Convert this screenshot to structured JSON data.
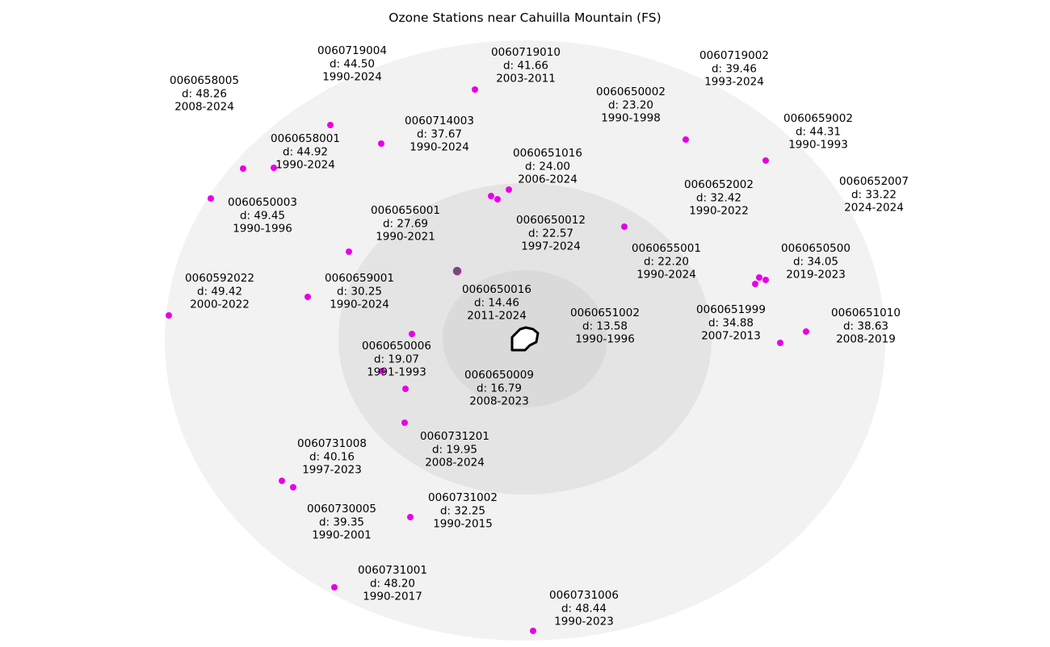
{
  "title": "Ozone Stations near Cahuilla Mountain (FS)",
  "colors": {
    "ring_outer": "#f2f2f2",
    "ring_middle": "#e4e4e4",
    "ring_inner": "#dadada",
    "station": "#e600e6",
    "selected_fill": "#2e7d32",
    "selected_ring": "#e600e6",
    "area_outline": "#000000"
  },
  "area": {
    "name_icon": "cahuilla-mountain-outline-icon"
  },
  "stations": [
    {
      "id": "0060719004",
      "d": "d: 44.50",
      "years": "1990-2024"
    },
    {
      "id": "0060719010",
      "d": "d: 41.66",
      "years": "2003-2011"
    },
    {
      "id": "0060719002",
      "d": "d: 39.46",
      "years": "1993-2024"
    },
    {
      "id": "0060658005",
      "d": "d: 48.26",
      "years": "2008-2024"
    },
    {
      "id": "0060650002",
      "d": "d: 23.20",
      "years": "1990-1998"
    },
    {
      "id": "0060714003",
      "d": "d: 37.67",
      "years": "1990-2024"
    },
    {
      "id": "0060659002",
      "d": "d: 44.31",
      "years": "1990-1993"
    },
    {
      "id": "0060658001",
      "d": "d: 44.92",
      "years": "1990-2024"
    },
    {
      "id": "0060651016",
      "d": "d: 24.00",
      "years": "2006-2024"
    },
    {
      "id": "0060652002",
      "d": "d: 32.42",
      "years": "1990-2022"
    },
    {
      "id": "0060652007",
      "d": "d: 33.22",
      "years": "2024-2024"
    },
    {
      "id": "0060650003",
      "d": "d: 49.45",
      "years": "1990-1996"
    },
    {
      "id": "0060656001",
      "d": "d: 27.69",
      "years": "1990-2021"
    },
    {
      "id": "0060650012",
      "d": "d: 22.57",
      "years": "1997-2024"
    },
    {
      "id": "0060655001",
      "d": "d: 22.20",
      "years": "1990-2024"
    },
    {
      "id": "0060650500",
      "d": "d: 34.05",
      "years": "2019-2023"
    },
    {
      "id": "0060592022",
      "d": "d: 49.42",
      "years": "2000-2022"
    },
    {
      "id": "0060659001",
      "d": "d: 30.25",
      "years": "1990-2024"
    },
    {
      "id": "0060650016",
      "d": "d: 14.46",
      "years": "2011-2024"
    },
    {
      "id": "0060651999",
      "d": "d: 34.88",
      "years": "2007-2013"
    },
    {
      "id": "0060651002",
      "d": "d: 13.58",
      "years": "1990-1996"
    },
    {
      "id": "0060651010",
      "d": "d: 38.63",
      "years": "2008-2019"
    },
    {
      "id": "0060650006",
      "d": "d: 19.07",
      "years": "1991-1993"
    },
    {
      "id": "0060650009",
      "d": "d: 16.79",
      "years": "2008-2023"
    },
    {
      "id": "0060731201",
      "d": "d: 19.95",
      "years": "2008-2024"
    },
    {
      "id": "0060731008",
      "d": "d: 40.16",
      "years": "1997-2023"
    },
    {
      "id": "0060731002",
      "d": "d: 32.25",
      "years": "1990-2015"
    },
    {
      "id": "0060730005",
      "d": "d: 39.35",
      "years": "1990-2001"
    },
    {
      "id": "0060731001",
      "d": "d: 48.20",
      "years": "1990-2017"
    },
    {
      "id": "0060731006",
      "d": "d: 48.44",
      "years": "1990-2023"
    }
  ]
}
